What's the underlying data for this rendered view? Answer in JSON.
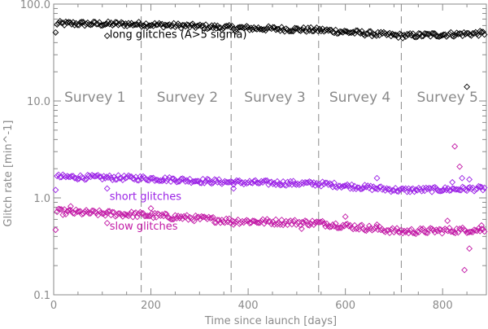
{
  "chart_data": {
    "type": "scatter",
    "xlabel": "Time since launch [days]",
    "ylabel": "Glitch rate [min^-1]",
    "xlim": [
      0,
      890
    ],
    "ylim": [
      0.1,
      100
    ],
    "yscale": "log",
    "xticks": [
      {
        "value": 0,
        "label": "0"
      },
      {
        "value": 200,
        "label": "200"
      },
      {
        "value": 400,
        "label": "400"
      },
      {
        "value": 600,
        "label": "600"
      },
      {
        "value": 800,
        "label": "800"
      }
    ],
    "yticks": [
      {
        "value": 0.1,
        "label": "0.1"
      },
      {
        "value": 1,
        "label": "1.0"
      },
      {
        "value": 10,
        "label": "10.0"
      },
      {
        "value": 100,
        "label": "100.0"
      }
    ],
    "grid": false,
    "survey_boundaries": [
      180,
      365,
      545,
      715
    ],
    "surveys": [
      {
        "label": "Survey 1",
        "x": 85
      },
      {
        "label": "Survey 2",
        "x": 275
      },
      {
        "label": "Survey 3",
        "x": 455
      },
      {
        "label": "Survey 4",
        "x": 630
      },
      {
        "label": "Survey 5",
        "x": 810
      }
    ],
    "survey_label_y": 11,
    "series": [
      {
        "label": "long glitches  (A>5 sigma)",
        "label_pos": [
          115,
          45
        ],
        "color": "#000000",
        "trend": [
          [
            5,
            63
          ],
          [
            180,
            62
          ],
          [
            365,
            57
          ],
          [
            545,
            54
          ],
          [
            715,
            47
          ],
          [
            890,
            50
          ]
        ],
        "scatter": 0.025,
        "outliers": [
          [
            110,
            47
          ],
          [
            850,
            14
          ],
          [
            375,
            52
          ]
        ]
      },
      {
        "label": "short glitches",
        "label_pos": [
          115,
          0.95
        ],
        "color": "#9b22e6",
        "trend": [
          [
            5,
            1.65
          ],
          [
            180,
            1.6
          ],
          [
            365,
            1.45
          ],
          [
            545,
            1.4
          ],
          [
            715,
            1.2
          ],
          [
            890,
            1.25
          ]
        ],
        "scatter": 0.025,
        "outliers": [
          [
            110,
            1.25
          ],
          [
            665,
            1.6
          ],
          [
            820,
            1.45
          ],
          [
            840,
            1.6
          ],
          [
            855,
            1.55
          ],
          [
            370,
            1.25
          ]
        ]
      },
      {
        "label": "slow glitches",
        "label_pos": [
          115,
          0.47
        ],
        "color": "#c21aa6",
        "trend": [
          [
            5,
            0.72
          ],
          [
            180,
            0.67
          ],
          [
            365,
            0.58
          ],
          [
            545,
            0.55
          ],
          [
            715,
            0.45
          ],
          [
            890,
            0.47
          ]
        ],
        "scatter": 0.03,
        "outliers": [
          [
            35,
            0.82
          ],
          [
            110,
            0.55
          ],
          [
            200,
            0.78
          ],
          [
            370,
            0.53
          ],
          [
            510,
            0.48
          ],
          [
            600,
            0.64
          ],
          [
            665,
            0.53
          ],
          [
            810,
            0.58
          ],
          [
            825,
            3.4
          ],
          [
            835,
            2.1
          ],
          [
            845,
            0.18
          ],
          [
            855,
            0.3
          ],
          [
            880,
            0.52
          ]
        ]
      }
    ]
  }
}
